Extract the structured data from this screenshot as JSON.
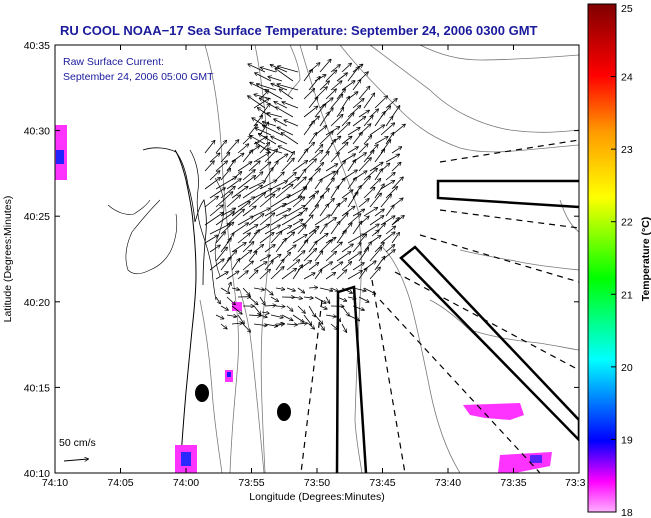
{
  "title": "RU COOL  NOAA−17  Sea Surface Temperature:  September 24, 2006 0300 GMT",
  "annotation": {
    "line1": "Raw Surface Current:",
    "line2": "September 24, 2006 05:00 GMT"
  },
  "scale_label": "50 cm/s",
  "axes": {
    "xlabel": "Longitude (Degrees:Minutes)",
    "ylabel": "Latitude (Degrees:Minutes)",
    "x_ticks": [
      "74:10",
      "74:05",
      "74:00",
      "73:55",
      "73:50",
      "73:45",
      "73:40",
      "73:35",
      "73:3"
    ],
    "y_ticks": [
      "40:35",
      "40:30",
      "40:25",
      "40:20",
      "40:15",
      "40:10"
    ]
  },
  "colorbar": {
    "label": "Temperature (°C)",
    "min": 18,
    "max": 25,
    "ticks": [
      "25",
      "24",
      "23",
      "22",
      "21",
      "20",
      "19",
      "18"
    ],
    "colors": [
      "#ff00ff",
      "#0000ff",
      "#00ffff",
      "#00ff00",
      "#ffff00",
      "#ff8000",
      "#ff0000",
      "#800000"
    ]
  },
  "colors": {
    "title": "#1a1a9c",
    "sst_patch": "#ff33ff",
    "contour": "#7a7a7a"
  },
  "chart_data": {
    "type": "map",
    "x_range": [
      "74:10",
      "73:30"
    ],
    "y_range": [
      "40:10",
      "40:35"
    ],
    "grid": false,
    "legend": "colorbar-right"
  }
}
